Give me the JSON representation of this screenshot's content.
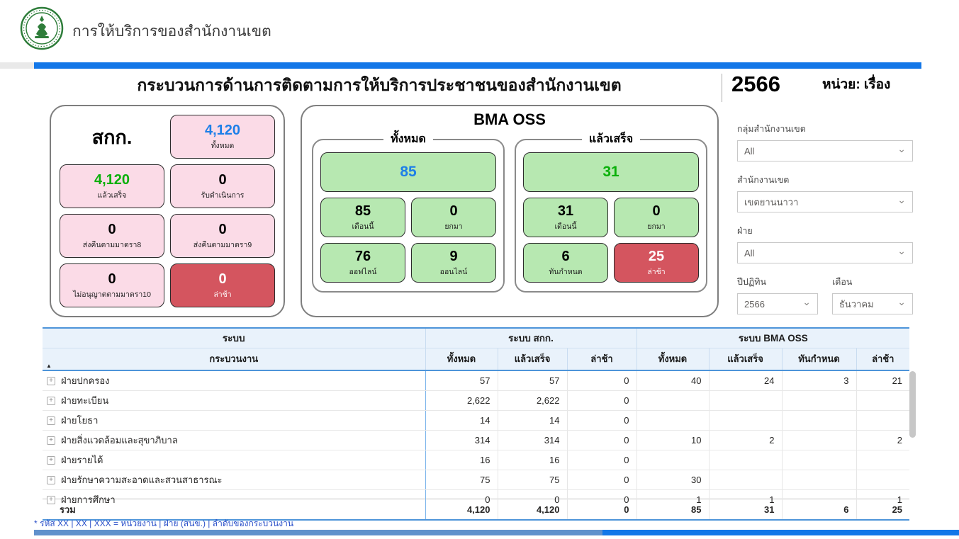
{
  "header": {
    "title": "การให้บริการของสำนักงานเขต"
  },
  "title_bar": {
    "title": "กระบวนการด้านการติดตามการให้บริการประชาชนของสำนักงานเขต",
    "year": "2566",
    "unit_label": "หน่วย: เรื่อง"
  },
  "sakok": {
    "title": "สกก.",
    "total": {
      "value": "4,120",
      "label": "ทั้งหมด"
    },
    "done": {
      "value": "4,120",
      "label": "แล้วเสร็จ"
    },
    "in_progress": {
      "value": "0",
      "label": "รับดำเนินการ"
    },
    "returned8": {
      "value": "0",
      "label": "ส่งคืนตามมาตรา8"
    },
    "returned9": {
      "value": "0",
      "label": "ส่งคืนตามมาตรา9"
    },
    "not_allowed10": {
      "value": "0",
      "label": "ไม่อนุญาตตามมาตรา10"
    },
    "late": {
      "value": "0",
      "label": "ล่าช้า"
    }
  },
  "bma_oss": {
    "title": "BMA OSS",
    "total_group": {
      "legend": "ทั้งหมด",
      "big_value": "85",
      "boxes": [
        {
          "value": "85",
          "label": "เดือนนี้"
        },
        {
          "value": "0",
          "label": "ยกมา"
        },
        {
          "value": "76",
          "label": "ออฟไลน์"
        },
        {
          "value": "9",
          "label": "ออนไลน์"
        }
      ]
    },
    "done_group": {
      "legend": "แล้วเสร็จ",
      "big_value": "31",
      "boxes": [
        {
          "value": "31",
          "label": "เดือนนี้"
        },
        {
          "value": "0",
          "label": "ยกมา"
        },
        {
          "value": "6",
          "label": "ทันกำหนด"
        },
        {
          "value": "25",
          "label": "ล่าช้า"
        }
      ]
    }
  },
  "filters": {
    "district_group": {
      "label": "กลุ่มสำนักงานเขต",
      "value": "All"
    },
    "district": {
      "label": "สำนักงานเขต",
      "value": "เขตยานนาวา"
    },
    "division": {
      "label": "ฝ่าย",
      "value": "All"
    },
    "year": {
      "label": "ปีปฏิทิน",
      "value": "2566"
    },
    "month": {
      "label": "เดือน",
      "value": "ธันวาคม"
    }
  },
  "table": {
    "group_headers": [
      "ระบบ",
      "ระบบ สกก.",
      "ระบบ BMA OSS"
    ],
    "col_headers": [
      "กระบวนงาน",
      "ทั้งหมด",
      "แล้วเสร็จ",
      "ล่าช้า",
      "ทั้งหมด",
      "แล้วเสร็จ",
      "ทันกำหนด",
      "ล่าช้า"
    ],
    "rows": [
      {
        "name": "ฝ่ายปกครอง",
        "values": [
          "57",
          "57",
          "0",
          "40",
          "24",
          "3",
          "21"
        ]
      },
      {
        "name": "ฝ่ายทะเบียน",
        "values": [
          "2,622",
          "2,622",
          "0",
          "",
          "",
          "",
          ""
        ]
      },
      {
        "name": "ฝ่ายโยธา",
        "values": [
          "14",
          "14",
          "0",
          "",
          "",
          "",
          ""
        ]
      },
      {
        "name": "ฝ่ายสิ่งแวดล้อมและสุขาภิบาล",
        "values": [
          "314",
          "314",
          "0",
          "10",
          "2",
          "",
          "2"
        ]
      },
      {
        "name": "ฝ่ายรายได้",
        "values": [
          "16",
          "16",
          "0",
          "",
          "",
          "",
          ""
        ]
      },
      {
        "name": "ฝ่ายรักษาความสะอาดและสวนสาธารณะ",
        "values": [
          "75",
          "75",
          "0",
          "30",
          "",
          "",
          ""
        ]
      },
      {
        "name": "ฝ่ายการศึกษา",
        "values": [
          "0",
          "0",
          "0",
          "1",
          "1",
          "",
          "1"
        ],
        "clipped": true
      }
    ],
    "total_row": {
      "name": "รวม",
      "values": [
        "4,120",
        "4,120",
        "0",
        "85",
        "31",
        "6",
        "25"
      ]
    }
  },
  "footnote": "* รหัส XX | XX | XXX = หน่วยงาน | ฝ่าย (สนข.) | ลำดับของกระบวนงาน",
  "icons": {
    "expand": "+",
    "sort_asc": "▲",
    "dropdown_chevron": "⌄"
  },
  "colors": {
    "accent_blue": "#1377e8",
    "pink_box": "#fbdbe7",
    "green_box": "#b7e8b1",
    "red_box": "#d4555f",
    "value_blue": "#1d7fe8",
    "value_green": "#0bb00b",
    "logo_green": "#2e7d3a"
  }
}
